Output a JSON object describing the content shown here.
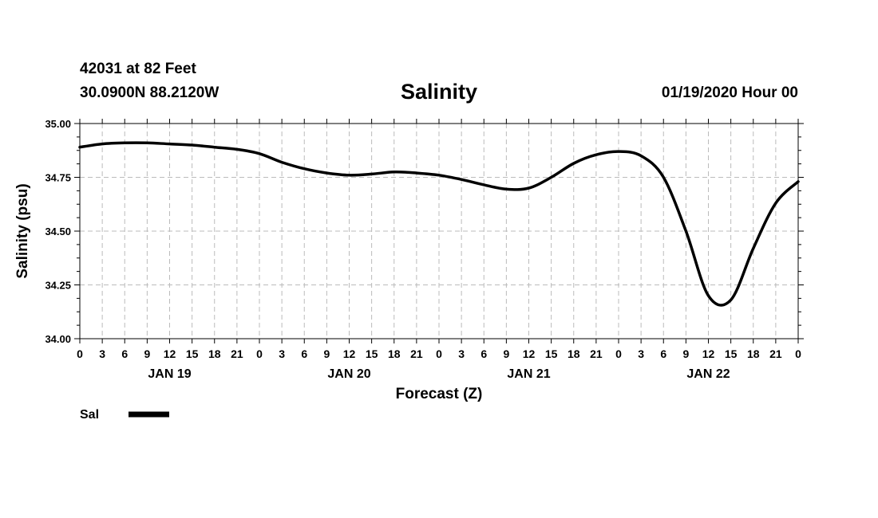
{
  "header": {
    "station": "42031 at 82 Feet",
    "coords": "30.0900N 88.2120W",
    "datetime": "01/19/2020 Hour 00"
  },
  "chart_data": {
    "type": "line",
    "title": "Salinity",
    "xlabel": "Forecast (Z)",
    "ylabel": "Salinity (psu)",
    "ylim": [
      34.0,
      35.0
    ],
    "yticks": [
      "34.00",
      "34.25",
      "34.50",
      "34.75",
      "35.00"
    ],
    "xlim": [
      0,
      96
    ],
    "xunit": "forecast hour from 01/19/2020 00Z",
    "xtick_labels": [
      "0",
      "3",
      "6",
      "9",
      "12",
      "15",
      "18",
      "21",
      "0",
      "3",
      "6",
      "9",
      "12",
      "15",
      "18",
      "21",
      "0",
      "3",
      "6",
      "9",
      "12",
      "15",
      "18",
      "21",
      "0",
      "3",
      "6",
      "9",
      "12",
      "15",
      "18",
      "21",
      "0"
    ],
    "day_labels": [
      "JAN 19",
      "JAN 20",
      "JAN 21",
      "JAN 22"
    ],
    "grid": true,
    "legend": {
      "placement": "bottom-left",
      "label": "Sal",
      "color": "#000000"
    },
    "series": [
      {
        "name": "Sal",
        "color": "#000000",
        "x": [
          0,
          3,
          6,
          9,
          12,
          15,
          18,
          21,
          24,
          27,
          30,
          33,
          36,
          39,
          42,
          45,
          48,
          51,
          54,
          57,
          60,
          63,
          66,
          69,
          72,
          75,
          78,
          81,
          84,
          87,
          90,
          93,
          96
        ],
        "y": [
          34.89,
          34.905,
          34.91,
          34.91,
          34.905,
          34.9,
          34.89,
          34.88,
          34.86,
          34.82,
          34.79,
          34.77,
          34.76,
          34.765,
          34.775,
          34.77,
          34.76,
          34.74,
          34.715,
          34.695,
          34.7,
          34.75,
          34.815,
          34.855,
          34.87,
          34.85,
          34.75,
          34.5,
          34.2,
          34.18,
          34.42,
          34.63,
          34.73
        ]
      }
    ]
  }
}
